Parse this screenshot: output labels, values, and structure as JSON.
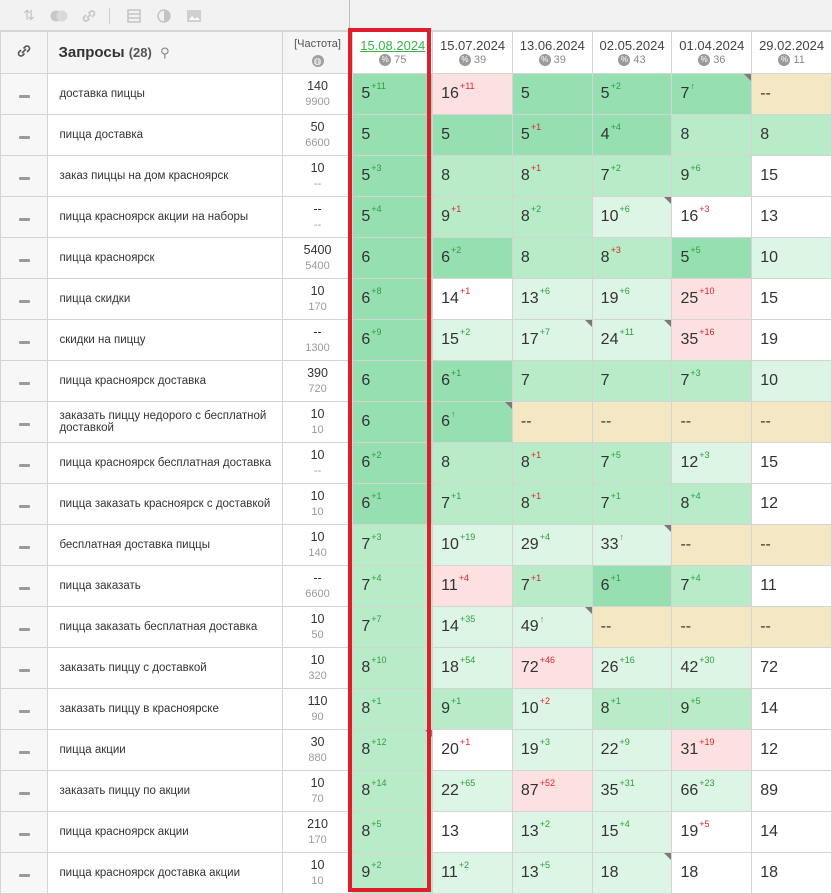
{
  "toolbar": {
    "icons": [
      "sort-icon",
      "toggle-icon",
      "link-icon",
      "divider",
      "table-icon",
      "contrast-icon",
      "image-icon"
    ]
  },
  "header": {
    "title": "Запросы",
    "count": "(28)",
    "freq_label": "[Частота]",
    "dates": [
      {
        "date": "15.08.2024",
        "sub": "75"
      },
      {
        "date": "15.07.2024",
        "sub": "39"
      },
      {
        "date": "13.06.2024",
        "sub": "39"
      },
      {
        "date": "02.05.2024",
        "sub": "43"
      },
      {
        "date": "01.04.2024",
        "sub": "36"
      },
      {
        "date": "29.02.2024",
        "sub": "11"
      }
    ]
  },
  "rows": [
    {
      "q": "доставка пиццы",
      "f1": "140",
      "f2": "9900",
      "c": [
        [
          "5",
          "+11",
          "up",
          "g1",
          0
        ],
        [
          "16",
          "+11",
          "down",
          "rd",
          0
        ],
        [
          "5",
          "",
          "",
          "g1",
          0
        ],
        [
          "5",
          "+2",
          "up",
          "g1",
          0
        ],
        [
          "7",
          "↑",
          "up",
          "g1",
          1
        ],
        [
          "--",
          "",
          "",
          "yl",
          0
        ]
      ]
    },
    {
      "q": "пицца доставка",
      "f1": "50",
      "f2": "6600",
      "c": [
        [
          "5",
          "",
          "",
          "g1",
          0
        ],
        [
          "5",
          "",
          "",
          "g1",
          0
        ],
        [
          "5",
          "+1",
          "down",
          "g1",
          0
        ],
        [
          "4",
          "+4",
          "up",
          "g1",
          0
        ],
        [
          "8",
          "",
          "",
          "g2",
          0
        ],
        [
          "8",
          "",
          "",
          "g2",
          0
        ]
      ]
    },
    {
      "q": "заказ пиццы на дом красноярск",
      "f1": "10",
      "f2": "--",
      "c": [
        [
          "5",
          "+3",
          "up",
          "g1",
          0
        ],
        [
          "8",
          "",
          "",
          "g2",
          0
        ],
        [
          "8",
          "+1",
          "down",
          "g2",
          0
        ],
        [
          "7",
          "+2",
          "up",
          "g2",
          0
        ],
        [
          "9",
          "+6",
          "up",
          "g2",
          0
        ],
        [
          "15",
          "",
          "",
          "wt",
          0
        ]
      ]
    },
    {
      "q": "пицца красноярск акции на наборы",
      "f1": "--",
      "f2": "--",
      "c": [
        [
          "5",
          "+4",
          "up",
          "g1",
          0
        ],
        [
          "9",
          "+1",
          "down",
          "g2",
          0
        ],
        [
          "8",
          "+2",
          "up",
          "g2",
          0
        ],
        [
          "10",
          "+6",
          "up",
          "g3",
          1
        ],
        [
          "16",
          "+3",
          "down",
          "wt",
          0
        ],
        [
          "13",
          "",
          "",
          "wt",
          0
        ]
      ]
    },
    {
      "q": "пицца красноярск",
      "f1": "5400",
      "f2": "5400",
      "c": [
        [
          "6",
          "",
          "",
          "g1",
          0
        ],
        [
          "6",
          "+2",
          "up",
          "g1",
          0
        ],
        [
          "8",
          "",
          "",
          "g2",
          0
        ],
        [
          "8",
          "+3",
          "down",
          "g2",
          0
        ],
        [
          "5",
          "+5",
          "up",
          "g1",
          0
        ],
        [
          "10",
          "",
          "",
          "g3",
          0
        ]
      ]
    },
    {
      "q": "пицца скидки",
      "f1": "10",
      "f2": "170",
      "c": [
        [
          "6",
          "+8",
          "up",
          "g1",
          0
        ],
        [
          "14",
          "+1",
          "down",
          "wt",
          0
        ],
        [
          "13",
          "+6",
          "up",
          "g3",
          0
        ],
        [
          "19",
          "+6",
          "up",
          "g3",
          0
        ],
        [
          "25",
          "+10",
          "down",
          "rd",
          0
        ],
        [
          "15",
          "",
          "",
          "wt",
          0
        ]
      ]
    },
    {
      "q": "скидки на пиццу",
      "f1": "--",
      "f2": "1300",
      "c": [
        [
          "6",
          "+9",
          "up",
          "g1",
          0
        ],
        [
          "15",
          "+2",
          "up",
          "g3",
          0
        ],
        [
          "17",
          "+7",
          "up",
          "g3",
          1
        ],
        [
          "24",
          "+11",
          "up",
          "g3",
          1
        ],
        [
          "35",
          "+16",
          "down",
          "rd",
          0
        ],
        [
          "19",
          "",
          "",
          "wt",
          0
        ]
      ]
    },
    {
      "q": "пицца красноярск доставка",
      "f1": "390",
      "f2": "720",
      "c": [
        [
          "6",
          "",
          "",
          "g1",
          0
        ],
        [
          "6",
          "+1",
          "up",
          "g1",
          0
        ],
        [
          "7",
          "",
          "",
          "g2",
          0
        ],
        [
          "7",
          "",
          "",
          "g2",
          0
        ],
        [
          "7",
          "+3",
          "up",
          "g2",
          0
        ],
        [
          "10",
          "",
          "",
          "g3",
          0
        ]
      ]
    },
    {
      "q": "заказать пиццу недорого с бесплатной доставкой",
      "f1": "10",
      "f2": "10",
      "c": [
        [
          "6",
          "",
          "",
          "g1",
          0
        ],
        [
          "6",
          "↑",
          "up",
          "g1",
          1
        ],
        [
          "--",
          "",
          "",
          "yl",
          0
        ],
        [
          "--",
          "",
          "",
          "yl",
          0
        ],
        [
          "--",
          "",
          "",
          "yl",
          0
        ],
        [
          "--",
          "",
          "",
          "yl",
          0
        ]
      ]
    },
    {
      "q": "пицца красноярск бесплатная доставка",
      "f1": "10",
      "f2": "--",
      "c": [
        [
          "6",
          "+2",
          "up",
          "g1",
          0
        ],
        [
          "8",
          "",
          "",
          "g2",
          0
        ],
        [
          "8",
          "+1",
          "down",
          "g2",
          0
        ],
        [
          "7",
          "+5",
          "up",
          "g2",
          0
        ],
        [
          "12",
          "+3",
          "up",
          "g3",
          0
        ],
        [
          "15",
          "",
          "",
          "wt",
          0
        ]
      ]
    },
    {
      "q": "пицца заказать красноярск с доставкой",
      "f1": "10",
      "f2": "10",
      "c": [
        [
          "6",
          "+1",
          "up",
          "g1",
          0
        ],
        [
          "7",
          "+1",
          "up",
          "g2",
          0
        ],
        [
          "8",
          "+1",
          "down",
          "g2",
          0
        ],
        [
          "7",
          "+1",
          "up",
          "g2",
          0
        ],
        [
          "8",
          "+4",
          "up",
          "g2",
          0
        ],
        [
          "12",
          "",
          "",
          "wt",
          0
        ]
      ]
    },
    {
      "q": "бесплатная доставка пиццы",
      "f1": "10",
      "f2": "140",
      "c": [
        [
          "7",
          "+3",
          "up",
          "g2",
          0
        ],
        [
          "10",
          "+19",
          "up",
          "g3",
          0
        ],
        [
          "29",
          "+4",
          "up",
          "g3",
          0
        ],
        [
          "33",
          "↑",
          "up",
          "g3",
          1
        ],
        [
          "--",
          "",
          "",
          "yl",
          0
        ],
        [
          "--",
          "",
          "",
          "yl",
          0
        ]
      ]
    },
    {
      "q": "пицца заказать",
      "f1": "--",
      "f2": "6600",
      "c": [
        [
          "7",
          "+4",
          "up",
          "g2",
          0
        ],
        [
          "11",
          "+4",
          "down",
          "rd",
          0
        ],
        [
          "7",
          "+1",
          "down",
          "g2",
          0
        ],
        [
          "6",
          "+1",
          "up",
          "g1",
          0
        ],
        [
          "7",
          "+4",
          "up",
          "g2",
          0
        ],
        [
          "11",
          "",
          "",
          "wt",
          0
        ]
      ]
    },
    {
      "q": "пицца заказать бесплатная доставка",
      "f1": "10",
      "f2": "50",
      "c": [
        [
          "7",
          "+7",
          "up",
          "g2",
          0
        ],
        [
          "14",
          "+35",
          "up",
          "g3",
          0
        ],
        [
          "49",
          "↑",
          "up",
          "g3",
          1
        ],
        [
          "--",
          "",
          "",
          "yl",
          0
        ],
        [
          "--",
          "",
          "",
          "yl",
          0
        ],
        [
          "--",
          "",
          "",
          "yl",
          0
        ]
      ]
    },
    {
      "q": "заказать пиццу с доставкой",
      "f1": "10",
      "f2": "320",
      "c": [
        [
          "8",
          "+10",
          "up",
          "g2",
          0
        ],
        [
          "18",
          "+54",
          "up",
          "g3",
          0
        ],
        [
          "72",
          "+46",
          "down",
          "rd",
          0
        ],
        [
          "26",
          "+16",
          "up",
          "g3",
          0
        ],
        [
          "42",
          "+30",
          "up",
          "g3",
          0
        ],
        [
          "72",
          "",
          "",
          "wt",
          0
        ]
      ]
    },
    {
      "q": "заказать пиццу в красноярске",
      "f1": "110",
      "f2": "90",
      "c": [
        [
          "8",
          "+1",
          "up",
          "g2",
          0
        ],
        [
          "9",
          "+1",
          "up",
          "g2",
          0
        ],
        [
          "10",
          "+2",
          "down",
          "g3",
          0
        ],
        [
          "8",
          "+1",
          "up",
          "g2",
          0
        ],
        [
          "9",
          "+5",
          "up",
          "g2",
          0
        ],
        [
          "14",
          "",
          "",
          "wt",
          0
        ]
      ]
    },
    {
      "q": "пицца акции",
      "f1": "30",
      "f2": "880",
      "c": [
        [
          "8",
          "+12",
          "up",
          "g2",
          1
        ],
        [
          "20",
          "+1",
          "down",
          "wt",
          0
        ],
        [
          "19",
          "+3",
          "up",
          "g3",
          0
        ],
        [
          "22",
          "+9",
          "up",
          "g3",
          0
        ],
        [
          "31",
          "+19",
          "down",
          "rd",
          0
        ],
        [
          "12",
          "",
          "",
          "wt",
          0
        ]
      ]
    },
    {
      "q": "заказать пиццу по акции",
      "f1": "10",
      "f2": "70",
      "c": [
        [
          "8",
          "+14",
          "up",
          "g2",
          0
        ],
        [
          "22",
          "+65",
          "up",
          "g3",
          0
        ],
        [
          "87",
          "+52",
          "down",
          "rd",
          0
        ],
        [
          "35",
          "+31",
          "up",
          "g3",
          0
        ],
        [
          "66",
          "+23",
          "up",
          "g3",
          0
        ],
        [
          "89",
          "",
          "",
          "wt",
          0
        ]
      ]
    },
    {
      "q": "пицца красноярск акции",
      "f1": "210",
      "f2": "170",
      "c": [
        [
          "8",
          "+5",
          "up",
          "g2",
          0
        ],
        [
          "13",
          "",
          "",
          "wt",
          0
        ],
        [
          "13",
          "+2",
          "up",
          "g3",
          0
        ],
        [
          "15",
          "+4",
          "up",
          "g3",
          0
        ],
        [
          "19",
          "+5",
          "down",
          "wt",
          0
        ],
        [
          "14",
          "",
          "",
          "wt",
          0
        ]
      ]
    },
    {
      "q": "пицца красноярск доставка акции",
      "f1": "10",
      "f2": "10",
      "c": [
        [
          "9",
          "+2",
          "up",
          "g2",
          0
        ],
        [
          "11",
          "+2",
          "up",
          "g3",
          0
        ],
        [
          "13",
          "+5",
          "up",
          "g3",
          0
        ],
        [
          "18",
          "",
          "",
          "g3",
          1
        ],
        [
          "18",
          "",
          "",
          "wt",
          0
        ],
        [
          "18",
          "",
          "",
          "wt",
          0
        ]
      ]
    }
  ]
}
